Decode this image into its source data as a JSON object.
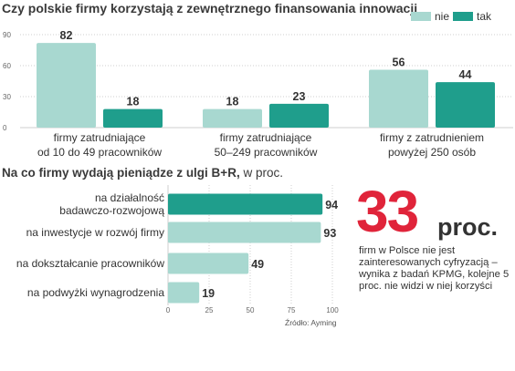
{
  "chart_data": [
    {
      "type": "bar",
      "title": "Czy polskie firmy korzystają z zewnętrznego finansowania innowacji",
      "categories": [
        "firmy zatrudniające od 10 do 49 pracowników",
        "firmy zatrudniające 50–249 pracowników",
        "firmy z zatrudnieniem powyżej 250 osób"
      ],
      "category_lines": [
        [
          "firmy zatrudniające",
          "od 10 do 49 pracowników"
        ],
        [
          "firmy zatrudniające",
          "50–249 pracowników"
        ],
        [
          "firmy z zatrudnieniem",
          "powyżej 250 osób"
        ]
      ],
      "series": [
        {
          "name": "nie",
          "values": [
            82,
            18,
            56
          ],
          "color": "#a8d8d0"
        },
        {
          "name": "tak",
          "values": [
            18,
            23,
            44
          ],
          "color": "#1f9e8c"
        }
      ],
      "yticks": [
        0,
        30,
        60,
        90
      ],
      "ylim": [
        0,
        90
      ],
      "legend": "top-right",
      "grid": true
    },
    {
      "type": "bar",
      "orientation": "horizontal",
      "title_bold": "Na co firmy wydają pieniądze z ulgi B+R,",
      "title_rest": " w proc.",
      "categories": [
        "na działalność badawczo-rozwojową",
        "na inwestycje w rozwój firmy",
        "na dokształcanie pracowników",
        "na podwyżki wynagrodzenia"
      ],
      "category_lines": [
        [
          "na działalność",
          "badawczo-rozwojową"
        ],
        [
          "na inwestycje w rozwój firmy"
        ],
        [
          "na dokształcanie pracowników"
        ],
        [
          "na podwyżki wynagrodzenia"
        ]
      ],
      "values": [
        94,
        93,
        49,
        19
      ],
      "colors": [
        "#1f9e8c",
        "#a8d8d0",
        "#a8d8d0",
        "#a8d8d0"
      ],
      "xticks": [
        0,
        25,
        50,
        75,
        100
      ],
      "xlim": [
        0,
        100
      ],
      "source": "Źródło: Ayming"
    }
  ],
  "highlight": {
    "number": "33",
    "unit": "proc.",
    "text": "firm w Polsce nie jest zainteresowanych cyfryzacją – wynika z badań KPMG, kolejne 5 proc. nie widzi w niej korzyści"
  },
  "colors": {
    "accent": "#e0243a",
    "dark_teal": "#1f9e8c",
    "light_teal": "#a8d8d0",
    "grid": "#cfcfcf"
  }
}
